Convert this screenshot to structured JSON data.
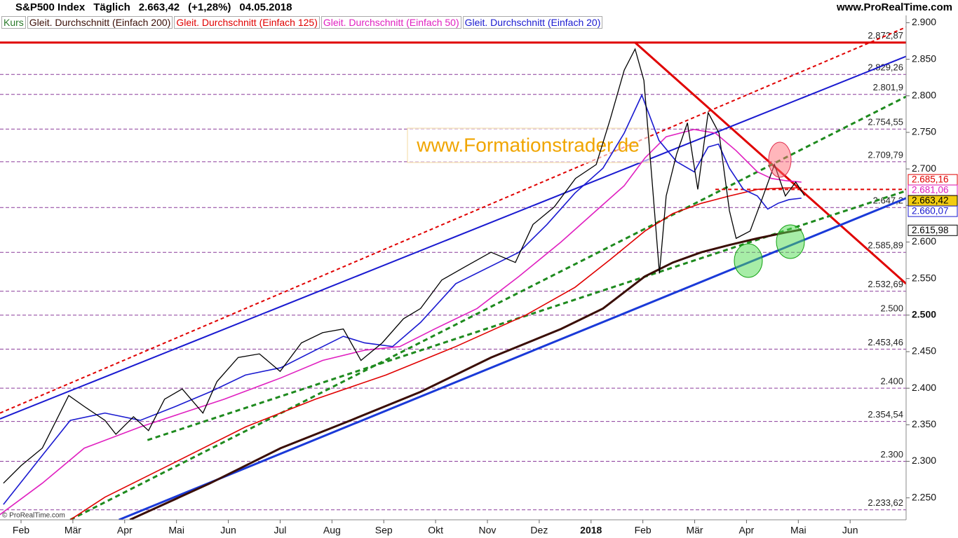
{
  "chart_data": {
    "type": "line",
    "title": "S&P500 Index",
    "subtitle": "Täglich",
    "last_price": "2.663,42",
    "change": "(+1,28%)",
    "date": "04.05.2018",
    "source": "www.ProRealTime.com",
    "watermark": "www.Formationstrader.de",
    "copyright": "© ProRealTime.com",
    "xlim": [
      1.594,
      19.08
    ],
    "ylim": [
      2220,
      2910
    ],
    "xticks": [
      {
        "value": 2,
        "label": "Feb"
      },
      {
        "value": 3,
        "label": "Mär"
      },
      {
        "value": 4,
        "label": "Apr"
      },
      {
        "value": 5,
        "label": "Mai"
      },
      {
        "value": 6,
        "label": "Jun"
      },
      {
        "value": 7,
        "label": "Jul"
      },
      {
        "value": 8,
        "label": "Aug"
      },
      {
        "value": 9,
        "label": "Sep"
      },
      {
        "value": 10,
        "label": "Okt"
      },
      {
        "value": 11,
        "label": "Nov"
      },
      {
        "value": 12,
        "label": "Dez"
      },
      {
        "value": 13,
        "label": "2018",
        "bold": true
      },
      {
        "value": 14,
        "label": "Feb"
      },
      {
        "value": 15,
        "label": "Mär"
      },
      {
        "value": 16,
        "label": "Apr"
      },
      {
        "value": 17,
        "label": "Mai"
      },
      {
        "value": 18,
        "label": "Jun"
      }
    ],
    "yticks": [
      {
        "value": 2250,
        "label": "2.250"
      },
      {
        "value": 2300,
        "label": "2.300"
      },
      {
        "value": 2350,
        "label": "2.350"
      },
      {
        "value": 2400,
        "label": "2.400"
      },
      {
        "value": 2450,
        "label": "2.450"
      },
      {
        "value": 2500,
        "label": "2.500",
        "bold": true
      },
      {
        "value": 2550,
        "label": "2.550"
      },
      {
        "value": 2600,
        "label": "2.600"
      },
      {
        "value": 2650,
        "label": "2.650"
      },
      {
        "value": 2700,
        "label": "2.700"
      },
      {
        "value": 2750,
        "label": "2.750"
      },
      {
        "value": 2800,
        "label": "2.800"
      },
      {
        "value": 2850,
        "label": "2.850"
      },
      {
        "value": 2900,
        "label": "2.900"
      }
    ],
    "series": [
      {
        "name": "Kurs",
        "color": "#000000",
        "x": [
          1.66,
          2.0,
          2.41,
          2.68,
          2.92,
          3.22,
          3.62,
          3.83,
          4.17,
          4.46,
          4.77,
          5.11,
          5.51,
          5.78,
          6.19,
          6.6,
          7.0,
          7.41,
          7.82,
          8.22,
          8.56,
          8.97,
          9.38,
          9.71,
          10.12,
          10.59,
          11.07,
          11.54,
          11.88,
          12.29,
          12.7,
          13.1,
          13.37,
          13.64,
          13.85,
          14.02,
          14.18,
          14.32,
          14.45,
          14.65,
          14.86,
          15.06,
          15.26,
          15.47,
          15.67,
          15.8,
          16.07,
          16.27,
          16.54,
          16.75,
          16.95,
          17.12
        ],
        "values": [
          2270,
          2294,
          2318,
          2356,
          2390,
          2375,
          2356,
          2337,
          2361,
          2342,
          2385,
          2399,
          2366,
          2409,
          2442,
          2447,
          2423,
          2462,
          2476,
          2481,
          2438,
          2462,
          2495,
          2509,
          2548,
          2567,
          2586,
          2572,
          2624,
          2648,
          2687,
          2706,
          2768,
          2835,
          2864,
          2821,
          2682,
          2557,
          2663,
          2720,
          2763,
          2672,
          2777,
          2749,
          2643,
          2605,
          2615,
          2653,
          2706,
          2663,
          2682,
          2663.42
        ]
      },
      {
        "name": "Gleit. Durchschnitt (Einfach 200)",
        "color": "#3a0e06",
        "x": [
          4.1,
          5.65,
          7.01,
          8.36,
          9.71,
          11.07,
          12.42,
          13.23,
          14.04,
          14.58,
          15.13,
          15.67,
          16.21,
          16.75,
          17.06
        ],
        "values": [
          2220,
          2270,
          2318,
          2356,
          2395,
          2442,
          2481,
          2509,
          2553,
          2572,
          2586,
          2596,
          2605,
          2613,
          2617
        ]
      },
      {
        "name": "Gleit. Durchschnitt (Einfach 125)",
        "color": "#e00000",
        "x": [
          2.95,
          3.62,
          4.98,
          6.33,
          7.68,
          9.04,
          10.39,
          11.74,
          12.69,
          13.37,
          14.04,
          14.58,
          15.13,
          15.67,
          16.21,
          16.75,
          17.06
        ],
        "values": [
          2220,
          2251,
          2299,
          2347,
          2385,
          2418,
          2457,
          2500,
          2538,
          2576,
          2615,
          2639,
          2653,
          2663,
          2672,
          2674,
          2674
        ]
      },
      {
        "name": "Gleit. Durchschnitt (Einfach 50)",
        "color": "#e020c0",
        "x": [
          1.59,
          2.41,
          3.22,
          4.3,
          5.11,
          5.92,
          7.01,
          7.82,
          8.63,
          9.31,
          9.98,
          10.8,
          11.61,
          12.42,
          13.1,
          13.64,
          14.04,
          14.45,
          14.99,
          15.4,
          15.8,
          16.21,
          16.48,
          16.75,
          17.06
        ],
        "values": [
          2227,
          2270,
          2318,
          2347,
          2366,
          2385,
          2414,
          2438,
          2452,
          2457,
          2481,
          2509,
          2553,
          2600,
          2643,
          2677,
          2715,
          2744,
          2754,
          2749,
          2725,
          2696,
          2687,
          2684,
          2682
        ]
      },
      {
        "name": "Gleit. Durchschnitt (Einfach 20)",
        "color": "#1a1ad0",
        "x": [
          1.66,
          2.41,
          2.95,
          3.62,
          4.3,
          4.98,
          5.65,
          6.33,
          7.01,
          7.68,
          8.22,
          8.63,
          9.17,
          9.71,
          10.39,
          11.07,
          11.61,
          12.15,
          12.69,
          13.23,
          13.64,
          13.98,
          14.31,
          14.65,
          14.99,
          15.26,
          15.46,
          15.67,
          15.94,
          16.21,
          16.41,
          16.61,
          16.82,
          17.06
        ],
        "values": [
          2241,
          2308,
          2356,
          2366,
          2356,
          2375,
          2395,
          2418,
          2428,
          2452,
          2471,
          2462,
          2457,
          2490,
          2543,
          2567,
          2586,
          2624,
          2667,
          2701,
          2749,
          2801,
          2739,
          2710,
          2696,
          2730,
          2734,
          2701,
          2672,
          2663,
          2645,
          2653,
          2658,
          2660
        ]
      }
    ],
    "trendlines": [
      {
        "x": [
          1.594,
          19.08
        ],
        "values": [
          2872.87,
          2872.87
        ],
        "color": "#e00000",
        "style": "thick"
      },
      {
        "x": [
          13.85,
          19.08
        ],
        "values": [
          2872.87,
          2543
        ],
        "color": "#e00000",
        "style": "thick"
      },
      {
        "x": [
          1.594,
          19.08
        ],
        "values": [
          2358,
          2854
        ],
        "color": "#1a1ad0",
        "style": "solid"
      },
      {
        "x": [
          1.594,
          19.08
        ],
        "values": [
          2366,
          2894
        ],
        "color": "#e00000",
        "style": "dotted"
      },
      {
        "x": [
          2.95,
          19.08
        ],
        "values": [
          2220,
          2799
        ],
        "color": "#1e8a1e",
        "style": "dashed"
      },
      {
        "x": [
          4.44,
          19.08
        ],
        "values": [
          2329,
          2670
        ],
        "color": "#1e8a1e",
        "style": "dashed"
      },
      {
        "x": [
          3.89,
          19.08
        ],
        "values": [
          2220,
          2660
        ],
        "color": "#1a3ad8",
        "style": "thick"
      },
      {
        "x": [
          15.4,
          19.08
        ],
        "values": [
          2672,
          2672
        ],
        "color": "#e00000",
        "style": "dotted"
      }
    ],
    "levels": [
      {
        "value": 2872.87,
        "label": "2.872,87"
      },
      {
        "value": 2829.26,
        "label": "2.829,26"
      },
      {
        "value": 2801.9,
        "label": "2.801,9"
      },
      {
        "value": 2754.55,
        "label": "2.754,55"
      },
      {
        "value": 2709.79,
        "label": "2.709,79"
      },
      {
        "value": 2647.2,
        "label": "2.647,2"
      },
      {
        "value": 2585.89,
        "label": "2.585,89"
      },
      {
        "value": 2532.69,
        "label": "2.532,69"
      },
      {
        "value": 2500,
        "label": "2.500"
      },
      {
        "value": 2453.46,
        "label": "2.453,46"
      },
      {
        "value": 2400,
        "label": "2.400"
      },
      {
        "value": 2354.54,
        "label": "2.354,54"
      },
      {
        "value": 2300,
        "label": "2.300"
      },
      {
        "value": 2233.62,
        "label": "2.233,62"
      }
    ],
    "price_tags": [
      {
        "value": 2685.16,
        "label": "2.685,16",
        "color": "#e00000",
        "fill": "#ffffff"
      },
      {
        "value": 2681.06,
        "label": "2.681,06",
        "color": "#e020c0",
        "fill": "#ffffff"
      },
      {
        "value": 2663.42,
        "label": "2.663,42",
        "color": "#000000",
        "fill": "#f2cc10"
      },
      {
        "value": 2660.07,
        "label": "2.660,07",
        "color": "#1a1ad0",
        "fill": "#ffffff"
      },
      {
        "value": 2615.98,
        "label": "2.615,98",
        "color": "#000000",
        "fill": "#ffffff"
      }
    ]
  }
}
